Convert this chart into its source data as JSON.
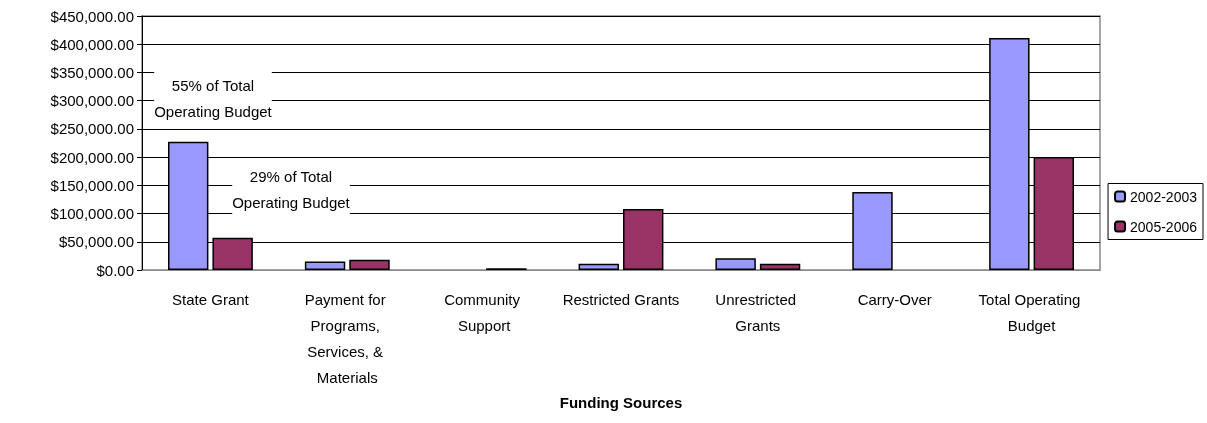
{
  "chart_data": {
    "type": "bar",
    "xlabel": "Funding Sources",
    "categories": [
      "State Grant",
      "Payment for Programs, Services, & Materials",
      "Community Support",
      "Restricted Grants",
      "Unrestricted Grants",
      "Carry-Over",
      "Total Operating Budget"
    ],
    "series": [
      {
        "name": "2002-2003",
        "color": "#9999ff",
        "values": [
          227000,
          15000,
          null,
          11000,
          21000,
          138000,
          411000
        ]
      },
      {
        "name": "2005-2006",
        "color": "#993366",
        "values": [
          57000,
          18000,
          3000,
          108000,
          11000,
          null,
          200000
        ]
      }
    ],
    "ylim": [
      0,
      450000
    ],
    "yticks": [
      {
        "value": 0,
        "label": "$0.00"
      },
      {
        "value": 50000,
        "label": "$50,000.00"
      },
      {
        "value": 100000,
        "label": "$100,000.00"
      },
      {
        "value": 150000,
        "label": "$150,000.00"
      },
      {
        "value": 200000,
        "label": "$200,000.00"
      },
      {
        "value": 250000,
        "label": "$250,000.00"
      },
      {
        "value": 300000,
        "label": "$300,000.00"
      },
      {
        "value": 350000,
        "label": "$350,000.00"
      },
      {
        "value": 400000,
        "label": "$400,000.00"
      },
      {
        "value": 450000,
        "label": "$450,000.00"
      }
    ],
    "annotations": [
      "55% of Total\nOperating Budget",
      "29% of Total\nOperating Budget"
    ],
    "grid": "y",
    "legend": "right"
  }
}
